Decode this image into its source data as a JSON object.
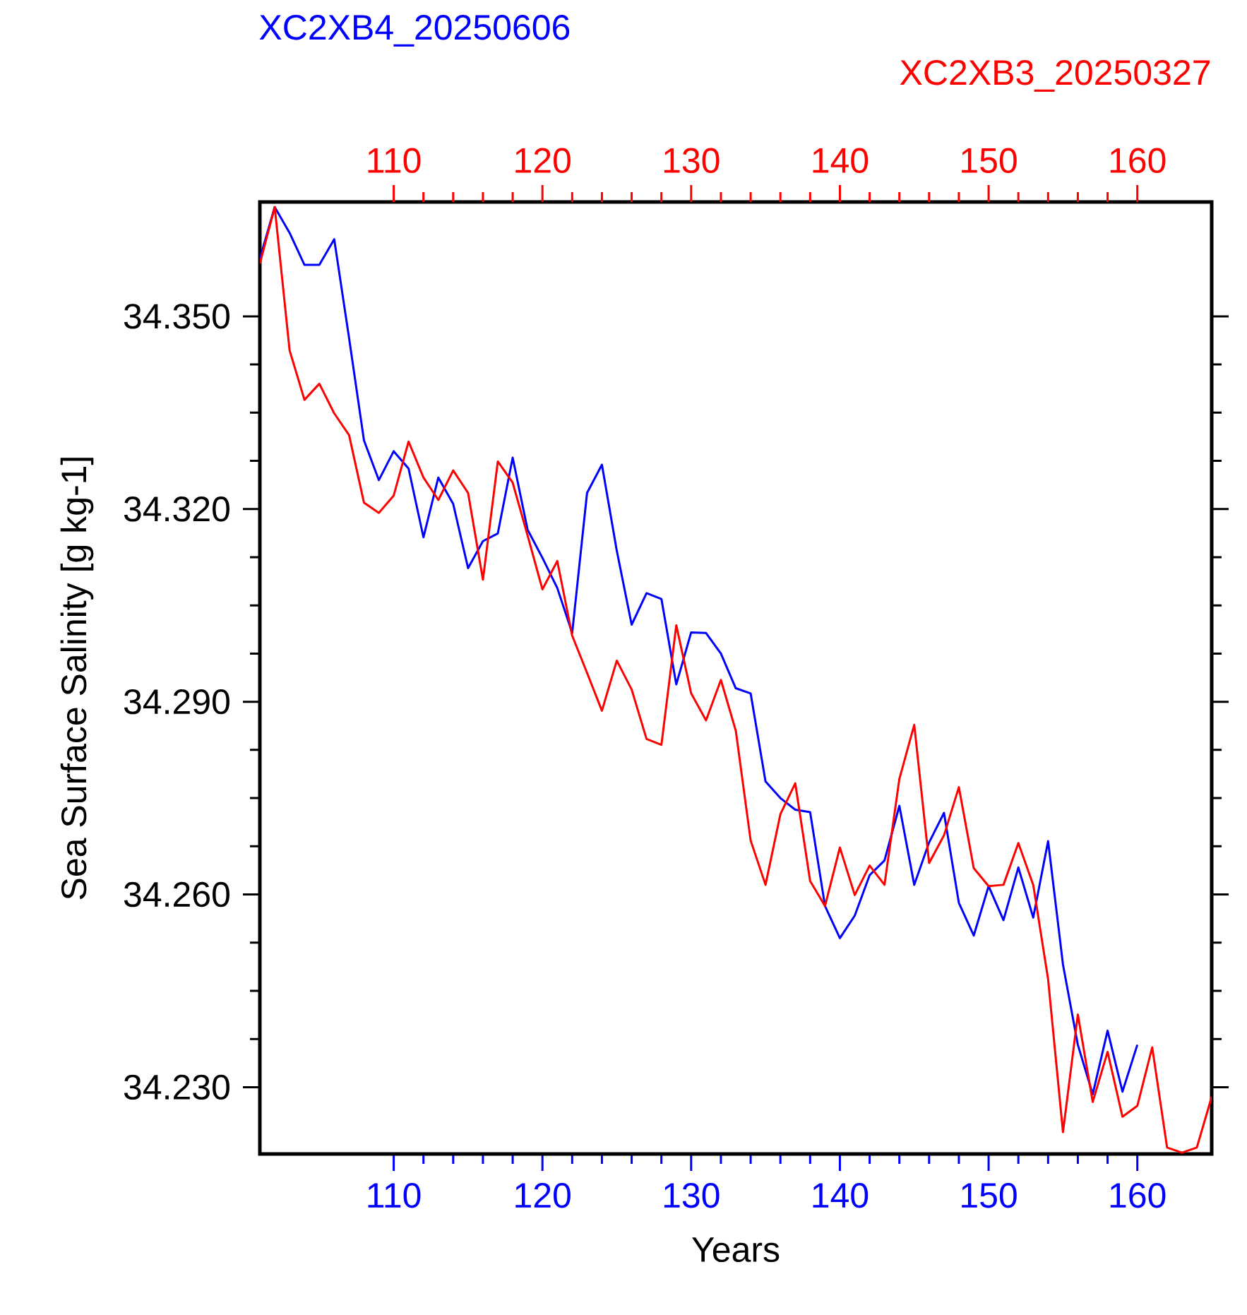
{
  "chart_data": {
    "type": "line",
    "xlabel": "Years",
    "ylabel": "Sea Surface Salinity [g kg-1]",
    "xlim": [
      101,
      165
    ],
    "xticks": [
      110,
      120,
      130,
      140,
      150,
      160
    ],
    "x2lim": [
      101,
      165
    ],
    "x2ticks": [
      110,
      120,
      130,
      140,
      150,
      160
    ],
    "ylim": [
      34.2196,
      34.3678
    ],
    "yticks": [
      {
        "value": 34.23,
        "label": "34.230"
      },
      {
        "value": 34.26,
        "label": "34.260"
      },
      {
        "value": 34.29,
        "label": "34.290"
      },
      {
        "value": 34.32,
        "label": "34.320"
      },
      {
        "value": 34.35,
        "label": "34.350"
      }
    ],
    "series": [
      {
        "name": "XC2XB4_20250606",
        "color": "#0000ff",
        "x": [
          101,
          102,
          103,
          104,
          105,
          106,
          107,
          108,
          109,
          110,
          111,
          112,
          113,
          114,
          115,
          116,
          117,
          118,
          119,
          120,
          121,
          122,
          123,
          124,
          125,
          126,
          127,
          128,
          129,
          130,
          131,
          132,
          133,
          134,
          135,
          136,
          137,
          138,
          139,
          140,
          141,
          142,
          143,
          144,
          145,
          146,
          147,
          148,
          149,
          150,
          151,
          152,
          153,
          154,
          155,
          156,
          157,
          158,
          159,
          160
        ],
        "values": [
          34.359,
          34.367,
          34.363,
          34.358,
          34.358,
          34.362,
          34.3466,
          34.3307,
          34.3245,
          34.329,
          34.3263,
          34.3156,
          34.3249,
          34.3208,
          34.3108,
          34.315,
          34.3162,
          34.328,
          34.3168,
          34.3124,
          34.3077,
          34.3007,
          34.3225,
          34.3269,
          34.3135,
          34.302,
          34.3069,
          34.306,
          34.2927,
          34.3008,
          34.3007,
          34.2975,
          34.2921,
          34.2913,
          34.2776,
          34.275,
          34.2732,
          34.2728,
          34.2582,
          34.2532,
          34.2567,
          34.263,
          34.2653,
          34.2738,
          34.2615,
          34.2681,
          34.2727,
          34.2587,
          34.2536,
          34.2613,
          34.256,
          34.2642,
          34.2564,
          34.2683,
          34.2491,
          34.2366,
          34.2289,
          34.2388,
          34.2293,
          34.2366
        ]
      },
      {
        "name": "XC2XB3_20250327",
        "color": "#ff0000",
        "axis": "x2",
        "x": [
          101,
          102,
          103,
          104,
          105,
          106,
          107,
          108,
          109,
          110,
          111,
          112,
          113,
          114,
          115,
          116,
          117,
          118,
          119,
          120,
          121,
          122,
          123,
          124,
          125,
          126,
          127,
          128,
          129,
          130,
          131,
          132,
          133,
          134,
          135,
          136,
          137,
          138,
          139,
          140,
          141,
          142,
          143,
          144,
          145,
          146,
          147,
          148,
          149,
          150,
          151,
          152,
          153,
          154,
          155,
          156,
          157,
          158,
          159,
          160,
          161,
          162,
          163,
          164,
          165
        ],
        "values": [
          34.3582,
          34.367,
          34.3447,
          34.337,
          34.3395,
          34.3349,
          34.3315,
          34.321,
          34.3194,
          34.3221,
          34.3305,
          34.3249,
          34.3214,
          34.326,
          34.3225,
          34.309,
          34.3274,
          34.3241,
          34.3159,
          34.3075,
          34.3119,
          34.3003,
          34.2945,
          34.2886,
          34.2964,
          34.2919,
          34.2842,
          34.2833,
          34.3019,
          34.2913,
          34.2871,
          34.2934,
          34.2855,
          34.2684,
          34.2615,
          34.2725,
          34.2773,
          34.2621,
          34.2582,
          34.2673,
          34.2599,
          34.2645,
          34.2615,
          34.278,
          34.2864,
          34.2649,
          34.2692,
          34.2767,
          34.2641,
          34.2613,
          34.2615,
          34.268,
          34.2615,
          34.2468,
          34.223,
          34.2413,
          34.2277,
          34.2355,
          34.2254,
          34.2271,
          34.2362,
          34.2206,
          34.2198,
          34.2206,
          34.2285
        ]
      }
    ]
  }
}
